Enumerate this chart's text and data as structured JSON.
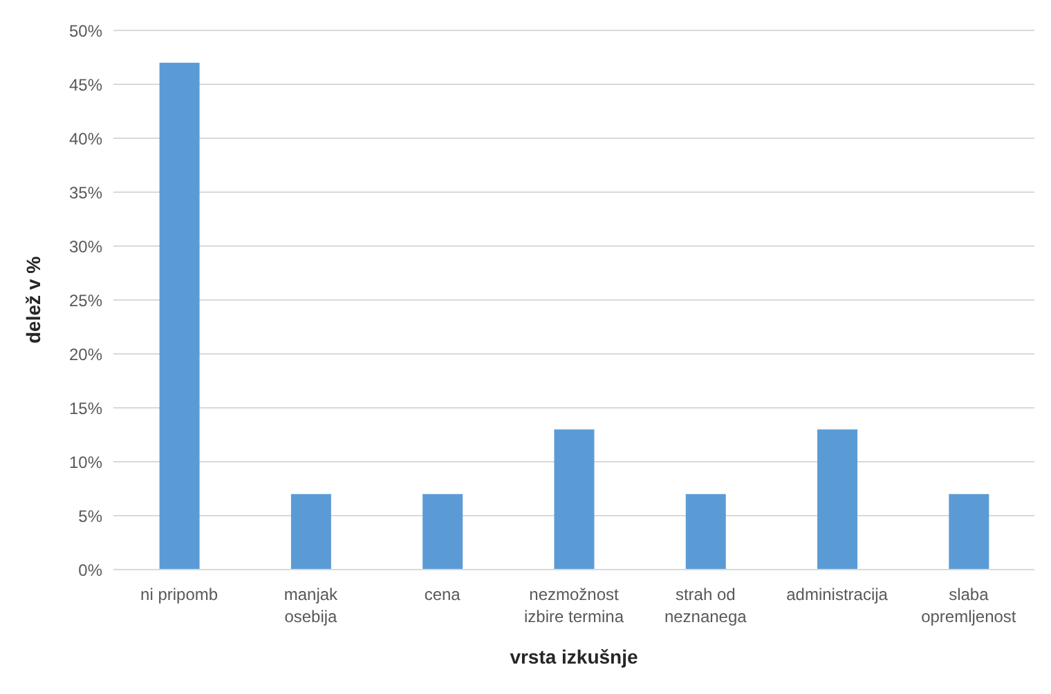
{
  "chart_data": {
    "type": "bar",
    "xlabel": "vrsta izkušnje",
    "ylabel": "delež v %",
    "categories": [
      "ni pripomb",
      "manjak osebija",
      "cena",
      "nezmožnost izbire termina",
      "strah od neznanega",
      "administracija",
      "slaba opremljenost"
    ],
    "values": [
      47,
      7,
      7,
      13,
      7,
      13,
      7
    ],
    "color": "#5b9bd5",
    "ylim": [
      0,
      50
    ],
    "yticks": [
      {
        "value": 0,
        "label": "0%"
      },
      {
        "value": 5,
        "label": "5%"
      },
      {
        "value": 10,
        "label": "10%"
      },
      {
        "value": 15,
        "label": "15%"
      },
      {
        "value": 20,
        "label": "20%"
      },
      {
        "value": 25,
        "label": "25%"
      },
      {
        "value": 30,
        "label": "30%"
      },
      {
        "value": 35,
        "label": "35%"
      },
      {
        "value": 40,
        "label": "40%"
      },
      {
        "value": 45,
        "label": "45%"
      },
      {
        "value": 50,
        "label": "50%"
      }
    ],
    "grid": "y"
  }
}
